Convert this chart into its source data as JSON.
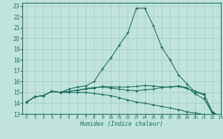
{
  "xlabel": "Humidex (Indice chaleur)",
  "bg_color": "#c0e4dc",
  "line_color": "#1a6b60",
  "grid_color": "#a0c8c0",
  "xlim": [
    -0.5,
    23
  ],
  "ylim": [
    13,
    23.3
  ],
  "xticks": [
    0,
    1,
    2,
    3,
    4,
    5,
    6,
    7,
    8,
    9,
    10,
    11,
    12,
    13,
    14,
    15,
    16,
    17,
    18,
    19,
    20,
    21,
    22,
    23
  ],
  "yticks": [
    13,
    14,
    15,
    16,
    17,
    18,
    19,
    20,
    21,
    22,
    23
  ],
  "line1_x": [
    0,
    1,
    2,
    3,
    4,
    5,
    6,
    7,
    8,
    9,
    10,
    11,
    12,
    13,
    14,
    15,
    16,
    17,
    18,
    19,
    20,
    21,
    22,
    23
  ],
  "line1_y": [
    14.1,
    14.6,
    14.7,
    15.1,
    15.0,
    15.3,
    15.5,
    15.6,
    16.0,
    17.2,
    18.2,
    19.4,
    20.5,
    22.8,
    22.8,
    21.2,
    19.2,
    18.0,
    16.6,
    15.8,
    15.0,
    14.8,
    13.1,
    12.75
  ],
  "line2_x": [
    0,
    1,
    2,
    3,
    4,
    5,
    6,
    7,
    8,
    9,
    10,
    11,
    12,
    13,
    14,
    15,
    16,
    17,
    18,
    19,
    20,
    21,
    22,
    23
  ],
  "line2_y": [
    14.1,
    14.6,
    14.7,
    15.1,
    15.0,
    15.1,
    15.2,
    15.35,
    15.45,
    15.5,
    15.4,
    15.3,
    15.2,
    15.15,
    15.25,
    15.3,
    15.45,
    15.5,
    15.55,
    15.35,
    15.1,
    14.85,
    13.2,
    12.75
  ],
  "line3_x": [
    0,
    1,
    2,
    3,
    4,
    5,
    6,
    7,
    8,
    9,
    10,
    11,
    12,
    13,
    14,
    15,
    16,
    17,
    18,
    19,
    20,
    21,
    22,
    23
  ],
  "line3_y": [
    14.1,
    14.6,
    14.7,
    15.1,
    15.0,
    15.1,
    15.2,
    15.3,
    15.4,
    15.55,
    15.5,
    15.5,
    15.5,
    15.55,
    15.65,
    15.6,
    15.5,
    15.5,
    15.6,
    15.45,
    14.85,
    14.4,
    13.1,
    12.75
  ],
  "line4_x": [
    0,
    1,
    2,
    3,
    4,
    5,
    6,
    7,
    8,
    9,
    10,
    11,
    12,
    13,
    14,
    15,
    16,
    17,
    18,
    19,
    20,
    21,
    22,
    23
  ],
  "line4_y": [
    14.1,
    14.6,
    14.7,
    15.1,
    15.0,
    15.0,
    15.0,
    15.0,
    14.9,
    14.8,
    14.7,
    14.5,
    14.3,
    14.1,
    14.0,
    13.85,
    13.7,
    13.55,
    13.4,
    13.2,
    13.1,
    12.95,
    12.85,
    12.75
  ]
}
